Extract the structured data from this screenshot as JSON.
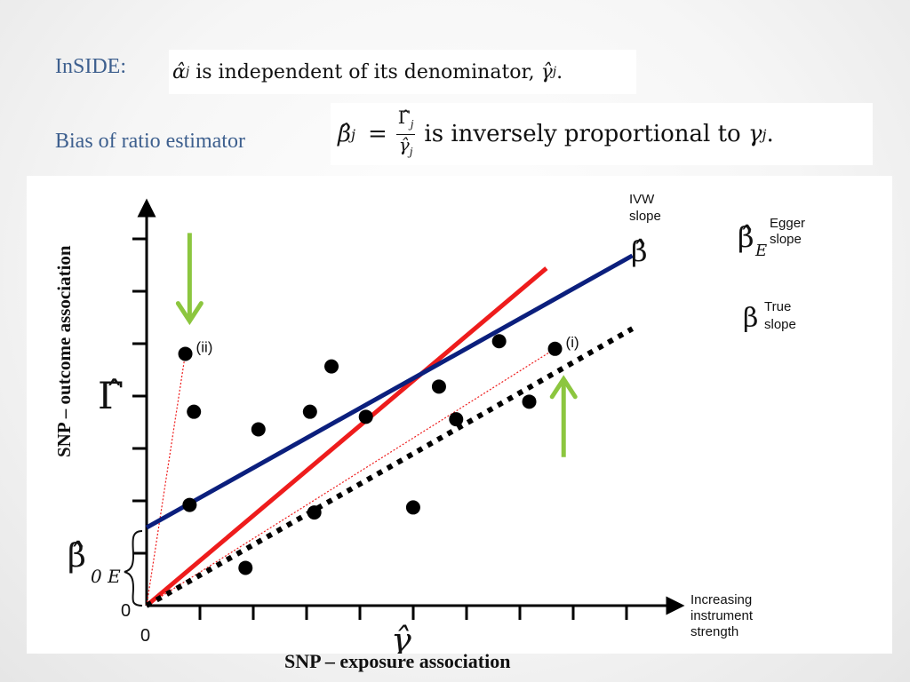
{
  "slide": {
    "inside_label": "InSIDE:",
    "inside_statement": {
      "symbol": "α̂",
      "subscript": "j",
      "text": " is independent of its denominator, ",
      "denominator_symbol": "γ̂",
      "denominator_subscript": "j",
      "end": "."
    },
    "bias_label": "Bias of ratio estimator",
    "bias_statement": {
      "lhs_symbol": "β̂",
      "lhs_subscript": "j",
      "equals": "=",
      "frac_num": "Γ̂",
      "frac_num_sub": "j",
      "frac_den": "γ̂",
      "frac_den_sub": "j",
      "text": "is inversely proportional to ",
      "gamma": "γ",
      "gamma_sub": "j",
      "end": "."
    },
    "y_axis_label": "SNP – outcome association",
    "x_axis_label": "SNP – exposure association"
  },
  "chart_data": {
    "type": "scatter",
    "ylabel_symbol": "Γ̂",
    "xlabel_symbol": "γ̂",
    "origin_label": "0",
    "x_origin_label": "0",
    "intercept_label": "β̂",
    "intercept_label_sub": "0 E",
    "x_axis_annotation": [
      "Increasing",
      "instrument",
      "strength"
    ],
    "points": [
      {
        "x": 0.9,
        "y": 5.0,
        "label": "(ii)"
      },
      {
        "x": 1.1,
        "y": 3.85
      },
      {
        "x": 1.0,
        "y": 2.0
      },
      {
        "x": 2.3,
        "y": 0.75
      },
      {
        "x": 2.6,
        "y": 3.5
      },
      {
        "x": 3.8,
        "y": 3.85
      },
      {
        "x": 3.9,
        "y": 1.85
      },
      {
        "x": 4.3,
        "y": 4.75
      },
      {
        "x": 5.1,
        "y": 3.75
      },
      {
        "x": 6.2,
        "y": 1.95
      },
      {
        "x": 6.8,
        "y": 4.35
      },
      {
        "x": 7.2,
        "y": 3.7
      },
      {
        "x": 8.2,
        "y": 5.25
      },
      {
        "x": 8.9,
        "y": 4.05
      },
      {
        "x": 9.5,
        "y": 5.1,
        "label": "(i)"
      }
    ],
    "lines": [
      {
        "name": "IVW slope",
        "symbol": "β̂",
        "color": "#ee1c1c",
        "x0": 0,
        "y0": 0,
        "x1": 9.3,
        "y1": 6.7,
        "style": "solid"
      },
      {
        "name": "Egger slope",
        "symbol": "β̂",
        "symbol_sub": "E",
        "color": "#0b1f7d",
        "x0": 0,
        "y0": 1.55,
        "x1": 11.3,
        "y1": 6.95,
        "style": "solid"
      },
      {
        "name": "True slope",
        "symbol": "β",
        "color": "#000000",
        "x0": 0,
        "y0": 0,
        "x1": 11.3,
        "y1": 5.5,
        "style": "dotted"
      }
    ],
    "ratio_lines": [
      {
        "from": [
          0,
          0
        ],
        "to": [
          0.9,
          5.0
        ],
        "color": "#ee1c1c"
      },
      {
        "from": [
          0,
          0
        ],
        "to": [
          9.5,
          5.1
        ],
        "color": "#ee1c1c"
      }
    ],
    "arrows": [
      {
        "direction": "down",
        "color": "#8cc63f",
        "x": 1.0,
        "y_from": 7.4,
        "y_to": 5.65
      },
      {
        "direction": "up",
        "color": "#8cc63f",
        "x": 9.7,
        "y_from": 2.95,
        "y_to": 4.5
      }
    ],
    "xlim": [
      0,
      12.3
    ],
    "ylim": [
      0,
      7.9
    ],
    "grid": false
  }
}
